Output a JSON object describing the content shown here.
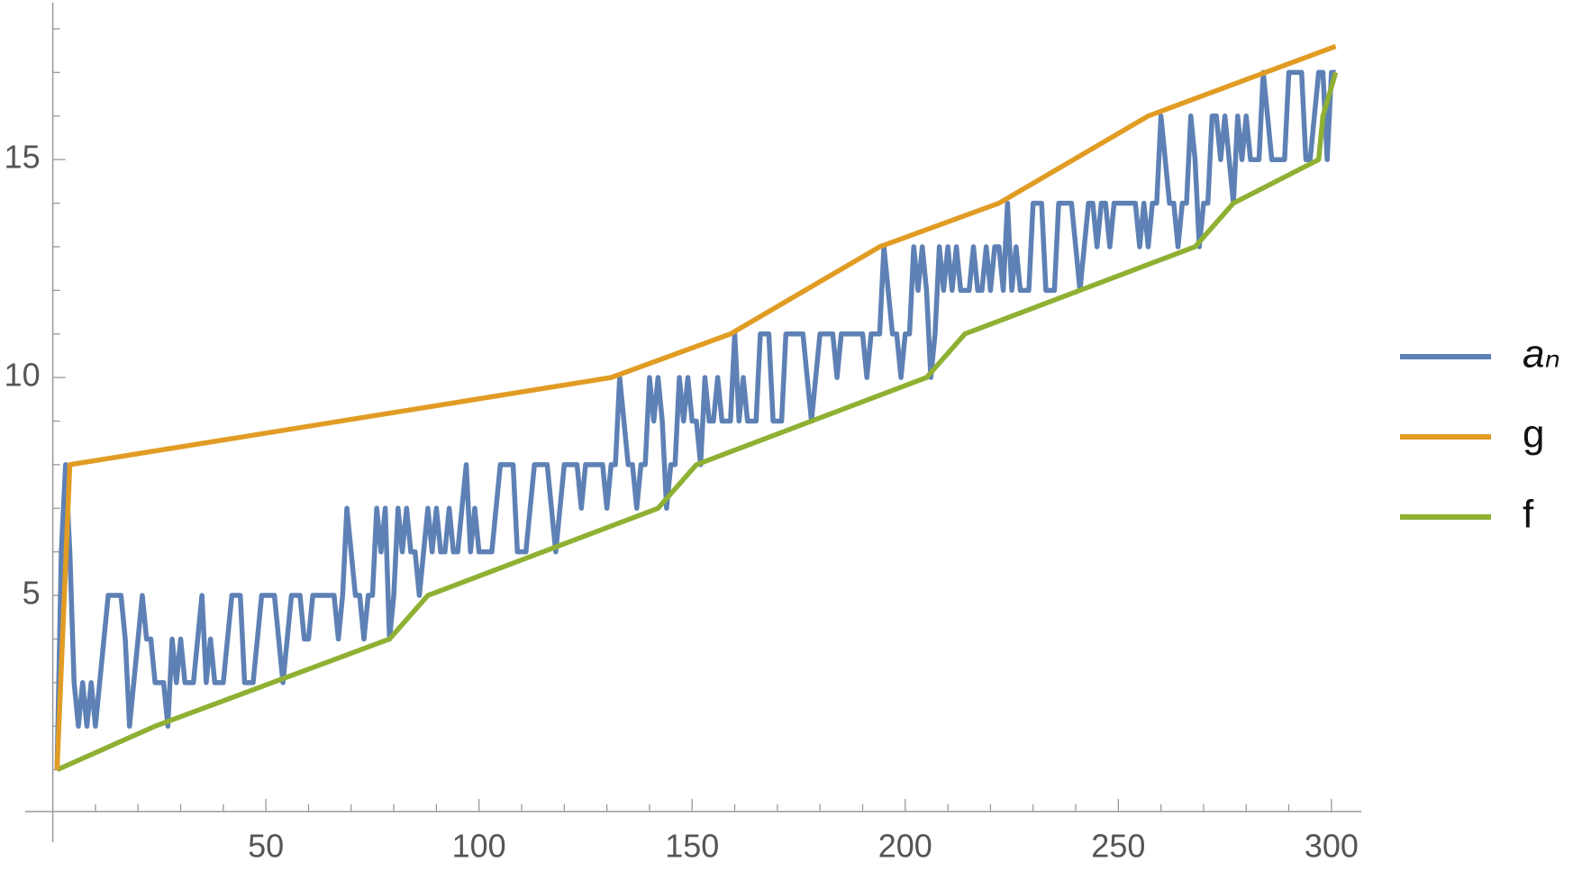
{
  "chart_data": {
    "type": "line",
    "xlim": [
      0,
      307
    ],
    "ylim": [
      0,
      18.6
    ],
    "xticks": [
      50,
      100,
      150,
      200,
      250,
      300
    ],
    "xminorticks": [
      10,
      20,
      30,
      40,
      60,
      70,
      80,
      90,
      110,
      120,
      130,
      140,
      160,
      170,
      180,
      190,
      210,
      220,
      230,
      240,
      260,
      270,
      280,
      290
    ],
    "yticks": [
      5,
      10,
      15
    ],
    "yminorticks": [
      1,
      2,
      3,
      4,
      6,
      7,
      8,
      9,
      11,
      12,
      13,
      14,
      16,
      17,
      18
    ],
    "legend": "right",
    "series": [
      {
        "name": "aₙ",
        "color": "#5e81b5",
        "x": [
          1,
          2,
          3,
          4,
          5,
          6,
          7,
          8,
          9,
          10,
          11,
          12,
          13,
          14,
          15,
          16,
          17,
          18,
          19,
          20,
          21,
          22,
          23,
          24,
          25,
          26,
          27,
          28,
          29,
          30,
          31,
          32,
          33,
          34,
          35,
          36,
          37,
          38,
          39,
          40,
          41,
          42,
          43,
          44,
          45,
          46,
          47,
          48,
          49,
          50,
          51,
          52,
          53,
          54,
          55,
          56,
          57,
          58,
          59,
          60,
          61,
          62,
          63,
          64,
          65,
          66,
          67,
          68,
          69,
          70,
          71,
          72,
          73,
          74,
          75,
          76,
          77,
          78,
          79,
          80,
          81,
          82,
          83,
          84,
          85,
          86,
          87,
          88,
          89,
          90,
          91,
          92,
          93,
          94,
          95,
          96,
          97,
          98,
          99,
          100,
          101,
          102,
          103,
          104,
          105,
          106,
          107,
          108,
          109,
          110,
          111,
          112,
          113,
          114,
          115,
          116,
          117,
          118,
          119,
          120,
          121,
          122,
          123,
          124,
          125,
          126,
          127,
          128,
          129,
          130,
          131,
          132,
          133,
          134,
          135,
          136,
          137,
          138,
          139,
          140,
          141,
          142,
          143,
          144,
          145,
          146,
          147,
          148,
          149,
          150,
          151,
          152,
          153,
          154,
          155,
          156,
          157,
          158,
          159,
          160,
          161,
          162,
          163,
          164,
          165,
          166,
          167,
          168,
          169,
          170,
          171,
          172,
          173,
          174,
          175,
          176,
          177,
          178,
          179,
          180,
          181,
          182,
          183,
          184,
          185,
          186,
          187,
          188,
          189,
          190,
          191,
          192,
          193,
          194,
          195,
          196,
          197,
          198,
          199,
          200,
          201,
          202,
          203,
          204,
          205,
          206,
          207,
          208,
          209,
          210,
          211,
          212,
          213,
          214,
          215,
          216,
          217,
          218,
          219,
          220,
          221,
          222,
          223,
          224,
          225,
          226,
          227,
          228,
          229,
          230,
          231,
          232,
          233,
          234,
          235,
          236,
          237,
          238,
          239,
          240,
          241,
          242,
          243,
          244,
          245,
          246,
          247,
          248,
          249,
          250,
          251,
          252,
          253,
          254,
          255,
          256,
          257,
          258,
          259,
          260,
          261,
          262,
          263,
          264,
          265,
          266,
          267,
          268,
          269,
          270,
          271,
          272,
          273,
          274,
          275,
          276,
          277,
          278,
          279,
          280,
          281,
          282,
          283,
          284,
          285,
          286,
          287,
          288,
          289,
          290,
          291,
          292,
          293,
          294,
          295,
          296,
          297,
          298,
          299,
          300,
          301
        ],
        "values": [
          1,
          6,
          8,
          6,
          3,
          2,
          3,
          2,
          3,
          2,
          3,
          4,
          5,
          5,
          5,
          5,
          4,
          2,
          3,
          4,
          5,
          4,
          4,
          3,
          3,
          3,
          2,
          4,
          3,
          4,
          3,
          3,
          3,
          4,
          5,
          3,
          4,
          3,
          3,
          3,
          4,
          5,
          5,
          5,
          3,
          3,
          3,
          4,
          5,
          5,
          5,
          5,
          4,
          3,
          4,
          5,
          5,
          5,
          4,
          4,
          5,
          5,
          5,
          5,
          5,
          5,
          4,
          5,
          7,
          6,
          5,
          5,
          4,
          5,
          5,
          7,
          6,
          7,
          4,
          5,
          7,
          6,
          7,
          6,
          6,
          5,
          6,
          7,
          6,
          7,
          6,
          6,
          7,
          6,
          6,
          7,
          8,
          6,
          7,
          6,
          6,
          6,
          6,
          7,
          8,
          8,
          8,
          8,
          6,
          6,
          6,
          7,
          8,
          8,
          8,
          8,
          7,
          6,
          7,
          8,
          8,
          8,
          8,
          7,
          8,
          8,
          8,
          8,
          8,
          7,
          8,
          8,
          10,
          9,
          8,
          8,
          7,
          8,
          8,
          10,
          9,
          10,
          9,
          7,
          8,
          8,
          10,
          9,
          10,
          9,
          9,
          8,
          10,
          9,
          9,
          10,
          9,
          9,
          9,
          11,
          9,
          10,
          9,
          9,
          9,
          11,
          11,
          11,
          9,
          9,
          9,
          11,
          11,
          11,
          11,
          11,
          10,
          9,
          10,
          11,
          11,
          11,
          11,
          10,
          11,
          11,
          11,
          11,
          11,
          11,
          10,
          11,
          11,
          11,
          13,
          12,
          11,
          11,
          10,
          11,
          11,
          13,
          12,
          13,
          12,
          10,
          11,
          13,
          12,
          13,
          12,
          13,
          12,
          12,
          12,
          13,
          12,
          12,
          13,
          12,
          13,
          13,
          12,
          14,
          12,
          13,
          12,
          12,
          12,
          14,
          14,
          14,
          12,
          12,
          12,
          14,
          14,
          14,
          14,
          13,
          12,
          13,
          14,
          14,
          13,
          14,
          14,
          13,
          14,
          14,
          14,
          14,
          14,
          14,
          13,
          14,
          13,
          14,
          14,
          16,
          15,
          14,
          14,
          13,
          14,
          14,
          16,
          15,
          13,
          14,
          14,
          16,
          16,
          15,
          16,
          15,
          14,
          16,
          15,
          16,
          15,
          15,
          15,
          17,
          16,
          15,
          15,
          15,
          15,
          17,
          17,
          17,
          17,
          15,
          15,
          16,
          17,
          17,
          15,
          17,
          17
        ]
      },
      {
        "name": "g",
        "color": "#e19c24",
        "x": [
          1,
          4,
          131,
          159,
          194,
          222,
          257,
          301
        ],
        "values": [
          1,
          8,
          10,
          11,
          13,
          14,
          16,
          17.6
        ]
      },
      {
        "name": "f",
        "color": "#8fb032",
        "x": [
          1,
          24,
          79,
          88,
          142,
          151,
          205,
          214,
          268,
          277,
          297,
          298,
          301
        ],
        "values": [
          1,
          2,
          4,
          5,
          7,
          8,
          10,
          11,
          13,
          14,
          15,
          16,
          17
        ]
      }
    ]
  }
}
